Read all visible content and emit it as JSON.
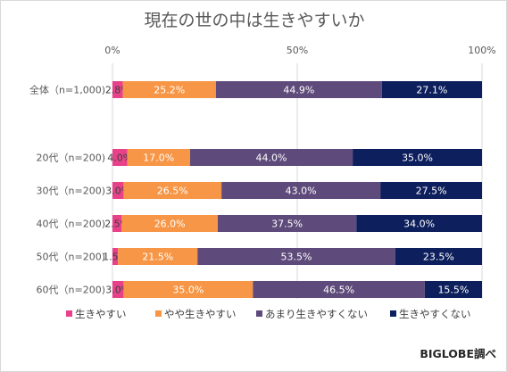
{
  "chart_data": {
    "type": "bar",
    "orientation": "horizontal",
    "stacked": true,
    "title": "現在の世の中は生きやすいか",
    "xlim": [
      0,
      100
    ],
    "xticks": [
      "0%",
      "50%",
      "100%"
    ],
    "categories": [
      "全体（n=1,000)",
      "20代（n=200)",
      "30代（n=200)",
      "40代（n=200)",
      "50代（n=200)",
      "60代（n=200)"
    ],
    "series": [
      {
        "name": "生きやすい",
        "color": "#e8418a",
        "label_color": "#404040",
        "values": [
          2.8,
          4.0,
          3.0,
          2.5,
          1.5,
          3.0
        ],
        "labels": [
          "2.8%",
          "4.0%",
          "3.0%",
          "2.5%",
          "1.5%",
          "3.0%"
        ]
      },
      {
        "name": "やや生きやすい",
        "color": "#f79646",
        "label_color": "#ffffff",
        "values": [
          25.2,
          17.0,
          26.5,
          26.0,
          21.5,
          35.0
        ],
        "labels": [
          "25.2%",
          "17.0%",
          "26.5%",
          "26.0%",
          "21.5%",
          "35.0%"
        ]
      },
      {
        "name": "あまり生きやすくない",
        "color": "#5f4b7b",
        "label_color": "#ffffff",
        "values": [
          44.9,
          44.0,
          43.0,
          37.5,
          53.5,
          46.5
        ],
        "labels": [
          "44.9%",
          "44.0%",
          "43.0%",
          "37.5%",
          "53.5%",
          "46.5%"
        ]
      },
      {
        "name": "生きやすくない",
        "color": "#0d1f5c",
        "label_color": "#ffffff",
        "values": [
          27.1,
          35.0,
          27.5,
          34.0,
          23.5,
          15.5
        ],
        "labels": [
          "27.1%",
          "35.0%",
          "27.5%",
          "34.0%",
          "23.5%",
          "15.5%"
        ]
      }
    ],
    "legend_position": "bottom",
    "grid": true
  },
  "source": "BIGLOBE調べ"
}
